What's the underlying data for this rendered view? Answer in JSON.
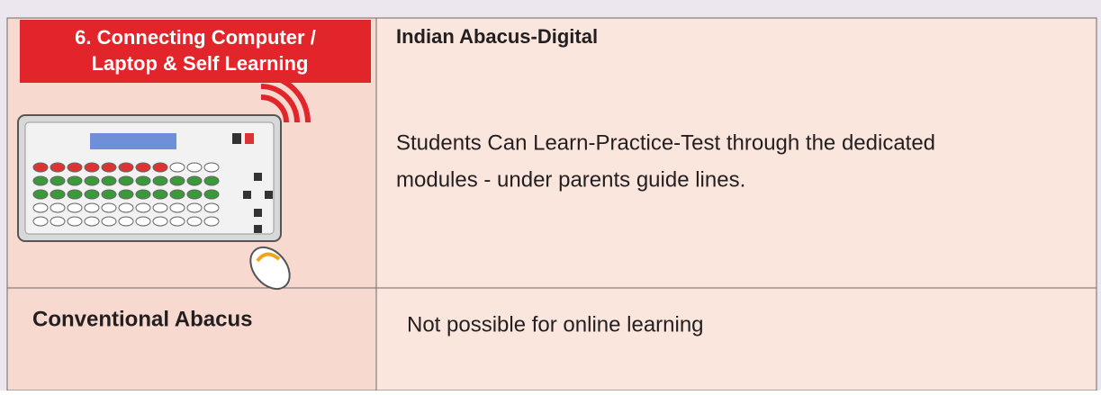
{
  "header": {
    "lines": [
      "6. Connecting Computer /",
      "Laptop  & Self Learning"
    ]
  },
  "digital": {
    "title": "Indian Abacus-Digital",
    "lines": [
      "Students Can Learn-Practice-Test through the  dedicated",
      "modules - under parents guide lines."
    ]
  },
  "conventional": {
    "title": "Conventional Abacus",
    "text": "Not possible for online learning"
  }
}
